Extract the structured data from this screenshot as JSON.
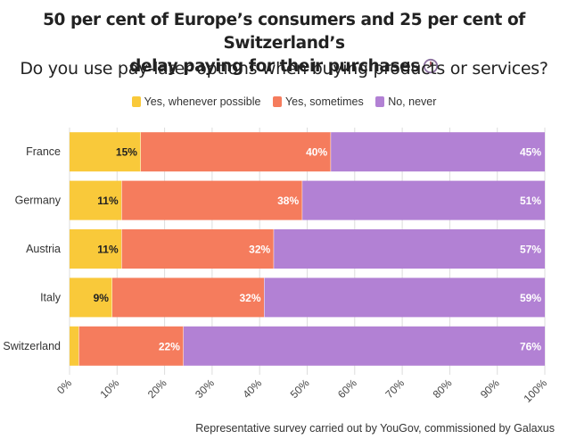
{
  "title_line1": "50 per cent of Europe’s consumers and 25 per cent of Switzerland’s",
  "title_line2": "delay paying for their purchases",
  "title_icon": "clock-icon",
  "subtitle": "Do you use pay-later options when buying products or services?",
  "source": "Representative survey carried out by YouGov, commissioned by Galaxus",
  "colors": {
    "yes_always": "#f9c93a",
    "yes_sometimes": "#f57c5d",
    "no_never": "#b281d4",
    "grid": "#dddddd"
  },
  "chart_data": {
    "type": "bar",
    "orientation": "horizontal",
    "stacked": true,
    "categories": [
      "France",
      "Germany",
      "Austria",
      "Italy",
      "Switzerland"
    ],
    "series": [
      {
        "name": "Yes, whenever possible",
        "values": [
          15,
          11,
          11,
          9,
          2
        ],
        "labels": [
          "15%",
          "11%",
          "11%",
          "9%",
          ""
        ]
      },
      {
        "name": "Yes, sometimes",
        "values": [
          40,
          38,
          32,
          32,
          22
        ],
        "labels": [
          "40%",
          "38%",
          "32%",
          "32%",
          "22%"
        ]
      },
      {
        "name": "No, never",
        "values": [
          45,
          51,
          57,
          59,
          76
        ],
        "labels": [
          "45%",
          "51%",
          "57%",
          "59%",
          "76%"
        ]
      }
    ],
    "xlim": [
      0,
      100
    ],
    "xticks": [
      "0%",
      "10%",
      "20%",
      "30%",
      "40%",
      "50%",
      "60%",
      "70%",
      "80%",
      "90%",
      "100%"
    ],
    "grid": true,
    "legend": "top-center"
  }
}
